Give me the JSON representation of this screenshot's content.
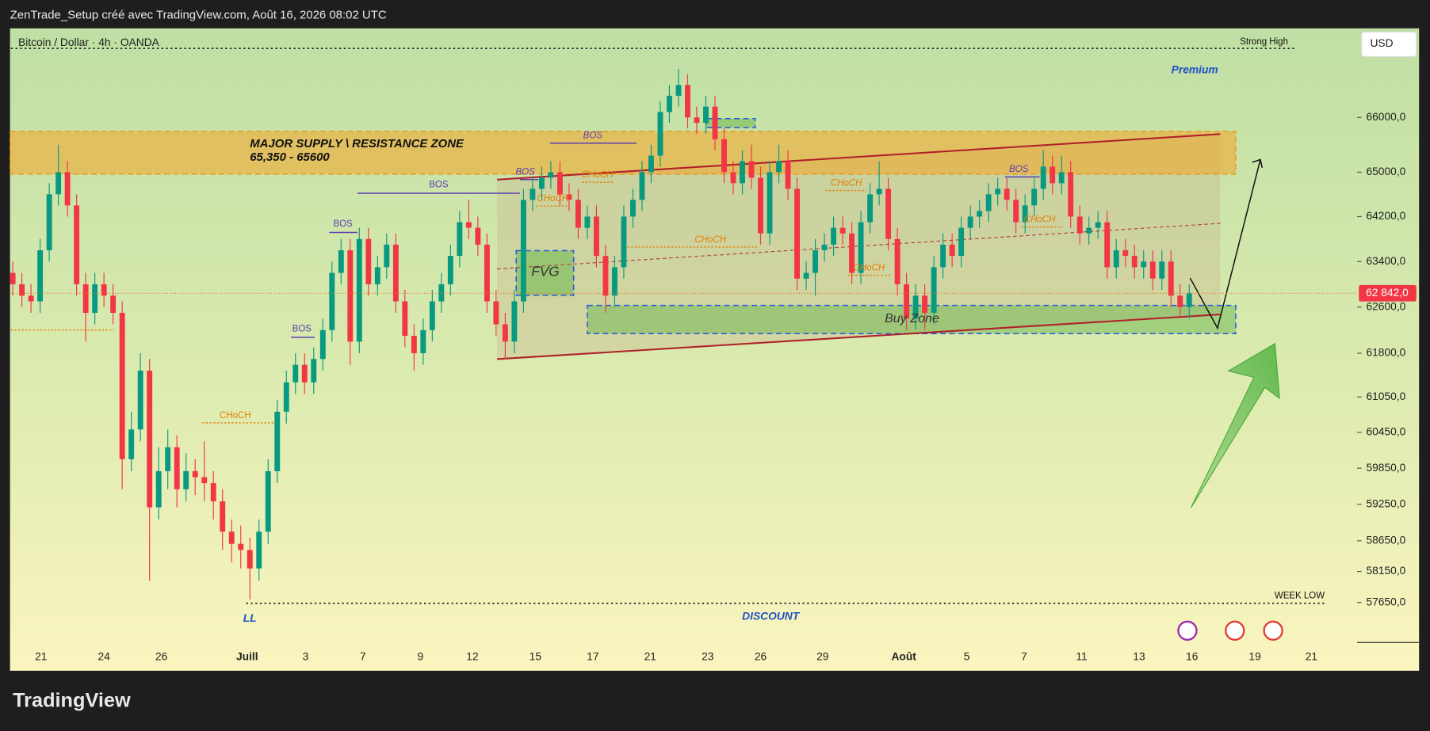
{
  "chart_data": {
    "type": "candlestick",
    "header": "ZenTrade_Setup créé avec TradingView.com, Août 16, 2026 08:02 UTC",
    "symbol": "Bitcoin / Dollar · 4h · OANDA",
    "currency": "USD",
    "logo": "TradingView",
    "log_scale": true,
    "up_color": "#089981",
    "down_color": "#f23645",
    "open": [
      63200,
      63000,
      62800,
      62700,
      63600,
      64600,
      65000,
      64400,
      63000,
      62500,
      63000,
      62800,
      62500,
      60000,
      60500,
      61500,
      59200,
      59800,
      60200,
      59500,
      59800,
      59700,
      59600,
      59300,
      58800,
      58600,
      58500,
      58200,
      58800,
      59800,
      60800,
      61300,
      61600,
      61300,
      61700,
      62200,
      63200,
      63600,
      62000,
      63800,
      63000,
      63300,
      63700,
      62700,
      62100,
      61800,
      62200,
      62700,
      63000,
      63500,
      64100,
      64000,
      63700,
      62700,
      62300,
      62000,
      62700,
      64500,
      64700,
      64900,
      65000,
      64600,
      64500,
      64000,
      64200,
      63500,
      62800,
      63300,
      64200,
      64500,
      65000,
      65300,
      66100,
      66400,
      66600,
      66000,
      65900,
      66200,
      65600,
      65000,
      64800,
      65200,
      64900,
      63900,
      65000,
      65200,
      64700,
      63100,
      63200,
      63600,
      63700,
      64000,
      63900,
      63200,
      64100,
      64600,
      64700,
      63800,
      63000,
      62400,
      62800,
      62500,
      63300,
      63700,
      63500,
      64000,
      64200,
      64300,
      64600,
      64700,
      64500,
      64100,
      64400,
      64700,
      65100,
      64800,
      65000,
      64200,
      63900,
      64000,
      64100,
      63300,
      63600,
      63500,
      63300,
      63400,
      63100,
      63400,
      62800,
      62600
    ],
    "high": [
      63400,
      63200,
      63000,
      63800,
      64800,
      65500,
      65200,
      64600,
      63200,
      63200,
      63200,
      63000,
      62700,
      60800,
      61800,
      61700,
      60200,
      60500,
      60400,
      60100,
      60000,
      60300,
      59800,
      59500,
      59000,
      58900,
      58700,
      59000,
      60000,
      61000,
      61500,
      61800,
      61800,
      61900,
      62400,
      63400,
      63800,
      63800,
      64000,
      64000,
      63500,
      63900,
      63900,
      62900,
      62300,
      62400,
      62900,
      63200,
      63700,
      64300,
      64500,
      64200,
      63900,
      62900,
      62500,
      62900,
      64700,
      64900,
      65100,
      65200,
      65200,
      64800,
      64700,
      64400,
      64400,
      63700,
      63500,
      64400,
      64700,
      65200,
      65500,
      66300,
      66600,
      66900,
      66800,
      66200,
      66400,
      66400,
      65800,
      65200,
      65400,
      65500,
      65100,
      65200,
      65500,
      65400,
      64900,
      63400,
      63800,
      63900,
      64200,
      64200,
      64100,
      64300,
      64800,
      65200,
      64900,
      64000,
      63200,
      63000,
      63000,
      63500,
      63900,
      63900,
      64200,
      64400,
      64500,
      64800,
      64900,
      64900,
      64700,
      64600,
      64900,
      65400,
      65300,
      65300,
      65200,
      64400,
      64200,
      64300,
      64300,
      63800,
      63800,
      63700,
      63600,
      63600,
      63600,
      63600,
      63000,
      63000
    ],
    "low": [
      62800,
      62600,
      62500,
      62500,
      63400,
      64400,
      64200,
      62800,
      62000,
      62300,
      62600,
      62300,
      59500,
      59800,
      60300,
      58000,
      59000,
      59500,
      59200,
      59300,
      59400,
      59300,
      59000,
      58500,
      58300,
      58200,
      57700,
      58000,
      58600,
      59600,
      60600,
      61100,
      61100,
      61100,
      61500,
      62000,
      63000,
      61600,
      61800,
      62800,
      62800,
      63100,
      62500,
      61900,
      61500,
      61600,
      62000,
      62500,
      62800,
      63300,
      63800,
      63500,
      62500,
      62100,
      61700,
      61800,
      62500,
      64300,
      64500,
      64700,
      64400,
      64300,
      63800,
      63800,
      63300,
      62500,
      62600,
      63100,
      64000,
      64300,
      64800,
      65100,
      65900,
      66200,
      65800,
      65700,
      65700,
      65400,
      64800,
      64600,
      64600,
      64700,
      63700,
      63700,
      64800,
      64500,
      62900,
      62900,
      62800,
      63400,
      63500,
      63700,
      63000,
      63000,
      63900,
      64400,
      63600,
      62800,
      62200,
      62200,
      62200,
      62300,
      63100,
      63300,
      63300,
      63800,
      64000,
      64100,
      64400,
      64300,
      63900,
      63900,
      64200,
      64500,
      64600,
      64600,
      64000,
      63700,
      63700,
      63800,
      63100,
      63100,
      63300,
      63100,
      63100,
      62900,
      62900,
      62600,
      62400,
      62400
    ],
    "close": [
      63000,
      62800,
      62700,
      63600,
      64600,
      65000,
      64400,
      63000,
      62500,
      63000,
      62800,
      62500,
      60000,
      60500,
      61500,
      59200,
      59800,
      60200,
      59500,
      59800,
      59700,
      59600,
      59300,
      58800,
      58600,
      58500,
      58200,
      58800,
      59800,
      60800,
      61300,
      61600,
      61300,
      61700,
      62200,
      63200,
      63600,
      62000,
      63800,
      63000,
      63300,
      63700,
      62700,
      62100,
      61800,
      62200,
      62700,
      63000,
      63500,
      64100,
      64000,
      63700,
      62700,
      62300,
      62000,
      62700,
      64500,
      64700,
      64900,
      65000,
      64600,
      64500,
      64000,
      64200,
      63500,
      62800,
      63300,
      64200,
      64500,
      65000,
      65300,
      66100,
      66400,
      66600,
      66000,
      65900,
      66200,
      65600,
      65000,
      64800,
      65200,
      64900,
      63900,
      65000,
      65200,
      64700,
      63100,
      63200,
      63600,
      63700,
      64000,
      63900,
      63200,
      64100,
      64600,
      64700,
      63800,
      63000,
      62400,
      62800,
      62500,
      63300,
      63700,
      63500,
      64000,
      64200,
      64300,
      64600,
      64700,
      64500,
      64100,
      64400,
      64700,
      65100,
      64800,
      65000,
      64200,
      63900,
      64000,
      64100,
      63300,
      63600,
      63500,
      63300,
      63400,
      63100,
      63400,
      62800,
      62600,
      62842
    ],
    "last_price": {
      "value": 62842,
      "label": "62 842,0"
    },
    "xlim": [
      -0.2,
      147.4
    ],
    "xticks": [
      {
        "value": 3.1,
        "label": "21"
      },
      {
        "value": 10,
        "label": "24"
      },
      {
        "value": 16.3,
        "label": "26"
      },
      {
        "value": 25.7,
        "label": "Juill"
      },
      {
        "value": 32.1,
        "label": "3"
      },
      {
        "value": 38.4,
        "label": "7"
      },
      {
        "value": 44.7,
        "label": "9"
      },
      {
        "value": 50.4,
        "label": "12"
      },
      {
        "value": 57.3,
        "label": "15"
      },
      {
        "value": 63.6,
        "label": "17"
      },
      {
        "value": 69.9,
        "label": "21"
      },
      {
        "value": 76.2,
        "label": "23"
      },
      {
        "value": 82,
        "label": "26"
      },
      {
        "value": 88.8,
        "label": "29"
      },
      {
        "value": 97.7,
        "label": "Août"
      },
      {
        "value": 104.6,
        "label": "5"
      },
      {
        "value": 110.9,
        "label": "7"
      },
      {
        "value": 117.2,
        "label": "11"
      },
      {
        "value": 123.5,
        "label": "13"
      },
      {
        "value": 129.3,
        "label": "16"
      },
      {
        "value": 136.2,
        "label": "19"
      },
      {
        "value": 142.4,
        "label": "21"
      }
    ],
    "ylim": [
      57010,
      67660
    ],
    "yticks": [
      {
        "value": 66000,
        "label": "66000,0"
      },
      {
        "value": 65000,
        "label": "65000,0"
      },
      {
        "value": 64200,
        "label": "64200,0"
      },
      {
        "value": 63400,
        "label": "63400,0"
      },
      {
        "value": 62600,
        "label": "62600,0"
      },
      {
        "value": 61800,
        "label": "61800,0"
      },
      {
        "value": 61050,
        "label": "61050,0"
      },
      {
        "value": 60450,
        "label": "60450,0"
      },
      {
        "value": 59850,
        "label": "59850,0"
      },
      {
        "value": 59250,
        "label": "59250,0"
      },
      {
        "value": 58650,
        "label": "58650,0"
      },
      {
        "value": 58150,
        "label": "58150,0"
      },
      {
        "value": 57650,
        "label": "57650,0"
      }
    ],
    "annotations": [
      {
        "text": "MAJOR SUPPLY \\ RESISTANCE ZONE",
        "color": "#111111"
      },
      {
        "text": "65,350 - 65600",
        "color": "#111111"
      },
      {
        "text": "FVG",
        "color": "#333333"
      },
      {
        "text": "Buy Zone",
        "color": "#333333"
      },
      {
        "text": "Premium",
        "color": "#1e50c8"
      },
      {
        "text": "DISCOUNT",
        "color": "#1e50c8"
      },
      {
        "text": "LL",
        "color": "#1e50c8"
      },
      {
        "text": "Strong High",
        "color": "#111111"
      },
      {
        "text": "WEEK LOW",
        "color": "#111111"
      },
      {
        "text": "BOS",
        "color": "#5b3fb0"
      },
      {
        "text": "BOS",
        "color": "#5b3fb0"
      },
      {
        "text": "BOS",
        "color": "#5b3fb0"
      },
      {
        "text": "BOS",
        "color": "#5b3fb0"
      },
      {
        "text": "BOS",
        "color": "#5b3fb0"
      },
      {
        "text": "BOS",
        "color": "#5b3fb0"
      },
      {
        "text": "CHoCH",
        "color": "#e67e00"
      },
      {
        "text": "CHoCH",
        "color": "#e67e00"
      },
      {
        "text": "CHoCH",
        "color": "#e67e00"
      },
      {
        "text": "CHoCH",
        "color": "#e67e00"
      },
      {
        "text": "CHoCH",
        "color": "#e67e00"
      },
      {
        "text": "CHoCH",
        "color": "#e67e00"
      },
      {
        "text": "CHoCH",
        "color": "#e67e00"
      }
    ]
  }
}
